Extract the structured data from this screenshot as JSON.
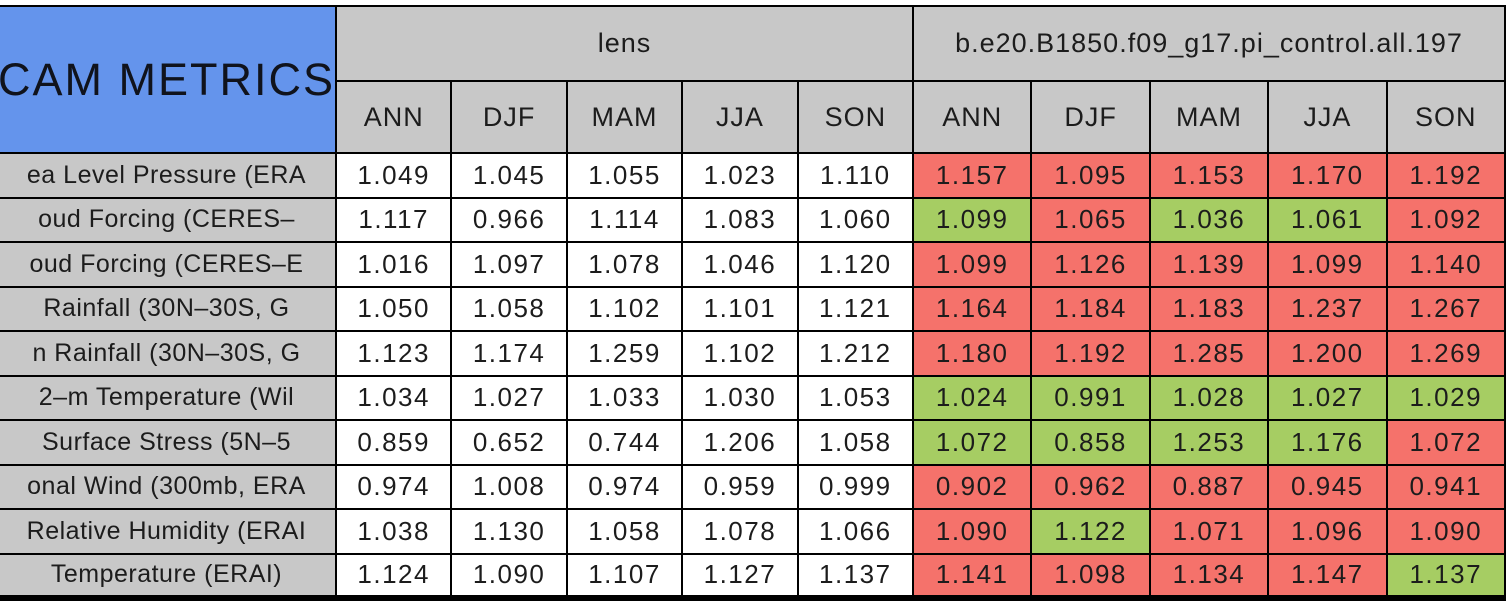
{
  "chart_data": {
    "type": "table",
    "title": "CAM METRICS",
    "column_groups": [
      {
        "label": "lens"
      },
      {
        "label": "b.e20.B1850.f09_g17.pi_control.all.197"
      }
    ],
    "season_columns": [
      "ANN",
      "DJF",
      "MAM",
      "JJA",
      "SON"
    ],
    "rows": [
      {
        "label": "ea Level Pressure (ERA",
        "lens_values": [
          "1.049",
          "1.045",
          "1.055",
          "1.023",
          "1.110"
        ],
        "control_values": [
          "1.157",
          "1.095",
          "1.153",
          "1.170",
          "1.192"
        ],
        "control_status": [
          "worse",
          "worse",
          "worse",
          "worse",
          "worse"
        ]
      },
      {
        "label": "oud Forcing (CERES–",
        "lens_values": [
          "1.117",
          "0.966",
          "1.114",
          "1.083",
          "1.060"
        ],
        "control_values": [
          "1.099",
          "1.065",
          "1.036",
          "1.061",
          "1.092"
        ],
        "control_status": [
          "better",
          "worse",
          "better",
          "better",
          "worse"
        ]
      },
      {
        "label": "oud Forcing (CERES–E",
        "lens_values": [
          "1.016",
          "1.097",
          "1.078",
          "1.046",
          "1.120"
        ],
        "control_values": [
          "1.099",
          "1.126",
          "1.139",
          "1.099",
          "1.140"
        ],
        "control_status": [
          "worse",
          "worse",
          "worse",
          "worse",
          "worse"
        ]
      },
      {
        "label": "Rainfall (30N–30S, G",
        "lens_values": [
          "1.050",
          "1.058",
          "1.102",
          "1.101",
          "1.121"
        ],
        "control_values": [
          "1.164",
          "1.184",
          "1.183",
          "1.237",
          "1.267"
        ],
        "control_status": [
          "worse",
          "worse",
          "worse",
          "worse",
          "worse"
        ]
      },
      {
        "label": "n Rainfall (30N–30S, G",
        "lens_values": [
          "1.123",
          "1.174",
          "1.259",
          "1.102",
          "1.212"
        ],
        "control_values": [
          "1.180",
          "1.192",
          "1.285",
          "1.200",
          "1.269"
        ],
        "control_status": [
          "worse",
          "worse",
          "worse",
          "worse",
          "worse"
        ]
      },
      {
        "label": "2–m Temperature (Wil",
        "lens_values": [
          "1.034",
          "1.027",
          "1.033",
          "1.030",
          "1.053"
        ],
        "control_values": [
          "1.024",
          "0.991",
          "1.028",
          "1.027",
          "1.029"
        ],
        "control_status": [
          "better",
          "better",
          "better",
          "better",
          "better"
        ]
      },
      {
        "label": "Surface Stress (5N–5",
        "lens_values": [
          "0.859",
          "0.652",
          "0.744",
          "1.206",
          "1.058"
        ],
        "control_values": [
          "1.072",
          "0.858",
          "1.253",
          "1.176",
          "1.072"
        ],
        "control_status": [
          "better",
          "better",
          "better",
          "better",
          "worse"
        ]
      },
      {
        "label": "onal Wind (300mb, ERA",
        "lens_values": [
          "0.974",
          "1.008",
          "0.974",
          "0.959",
          "0.999"
        ],
        "control_values": [
          "0.902",
          "0.962",
          "0.887",
          "0.945",
          "0.941"
        ],
        "control_status": [
          "worse",
          "worse",
          "worse",
          "worse",
          "worse"
        ]
      },
      {
        "label": "Relative Humidity (ERAI",
        "lens_values": [
          "1.038",
          "1.130",
          "1.058",
          "1.078",
          "1.066"
        ],
        "control_values": [
          "1.090",
          "1.122",
          "1.071",
          "1.096",
          "1.090"
        ],
        "control_status": [
          "worse",
          "better",
          "worse",
          "worse",
          "worse"
        ]
      },
      {
        "label": "Temperature (ERAI)",
        "lens_values": [
          "1.124",
          "1.090",
          "1.107",
          "1.127",
          "1.137"
        ],
        "control_values": [
          "1.141",
          "1.098",
          "1.134",
          "1.147",
          "1.137"
        ],
        "control_status": [
          "worse",
          "worse",
          "worse",
          "worse",
          "better"
        ]
      }
    ],
    "legend": {
      "better_color_meaning": "control metric better/equal vs lens",
      "worse_color_meaning": "control metric worse vs lens"
    },
    "layout": {
      "grid": true,
      "clipped_left_edge": true
    }
  },
  "colors": {
    "title_bg": "#6494ec",
    "header_bg": "#c8c8c8",
    "neutral": "#ffffff",
    "better": "#a6cd63",
    "worse": "#f5726b",
    "border": "#000000"
  }
}
